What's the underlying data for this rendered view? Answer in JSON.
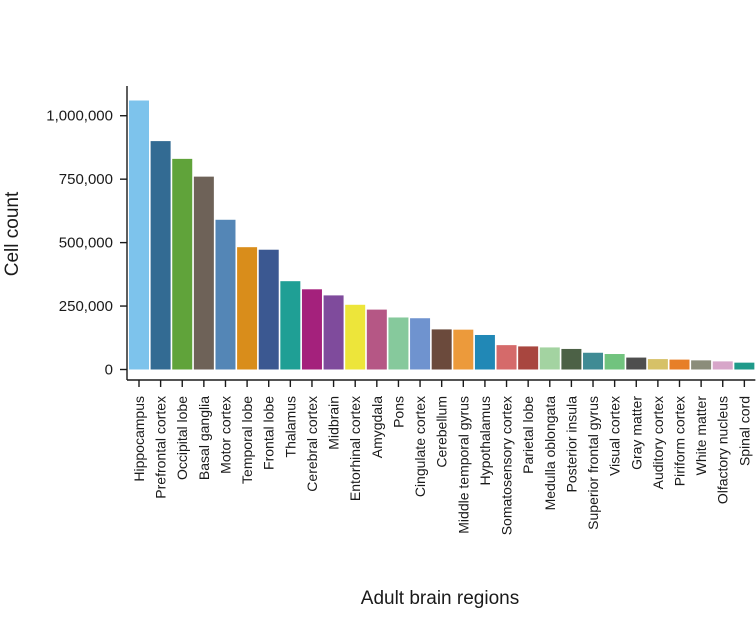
{
  "chart_data": {
    "type": "bar",
    "title": "",
    "xlabel": "Adult brain regions",
    "ylabel": "Cell count",
    "ylim": [
      0,
      1100000
    ],
    "yticks": [
      0,
      250000,
      500000,
      750000,
      1000000
    ],
    "ytick_labels": [
      "0",
      "250,000",
      "500,000",
      "750,000",
      "1,000,000"
    ],
    "grid": false,
    "legend": "none",
    "categories": [
      "Hippocampus",
      "Prefrontal cortex",
      "Occipital lobe",
      "Basal ganglia",
      "Motor cortex",
      "Temporal lobe",
      "Frontal lobe",
      "Thalamus",
      "Cerebral cortex",
      "Midbrain",
      "Entorhinal cortex",
      "Amygdala",
      "Pons",
      "Cingulate cortex",
      "Cerebellum",
      "Middle temporal gyrus",
      "Hypothalamus",
      "Somatosensory cortex",
      "Parietal lobe",
      "Medulla oblongata",
      "Posterior insula",
      "Superior frontal gyrus",
      "Visual cortex",
      "Gray matter",
      "Auditory cortex",
      "Piriform cortex",
      "White matter",
      "Olfactory nucleus",
      "Spinal cord"
    ],
    "values": [
      1060000,
      900000,
      830000,
      760000,
      590000,
      482000,
      472000,
      348000,
      316000,
      292000,
      255000,
      236000,
      205000,
      202000,
      158000,
      157000,
      136000,
      96000,
      91000,
      87000,
      81000,
      66000,
      61000,
      47000,
      41000,
      39000,
      36000,
      32000,
      27000
    ],
    "colors": [
      "#7dc3ec",
      "#336b93",
      "#60a33a",
      "#6e6258",
      "#5486b6",
      "#d98d1b",
      "#3b5891",
      "#1f9f95",
      "#a4217c",
      "#7f4b9c",
      "#ede53a",
      "#b55785",
      "#86c99c",
      "#6f93cf",
      "#6b4a3c",
      "#ec9a3b",
      "#2188b6",
      "#d56a6a",
      "#a8463f",
      "#a3d3a1",
      "#4c6146",
      "#3f8b94",
      "#71c37e",
      "#4e4e4e",
      "#d6c167",
      "#e77f27",
      "#8b8d7a",
      "#d7a6c9",
      "#1f9a8a"
    ]
  }
}
